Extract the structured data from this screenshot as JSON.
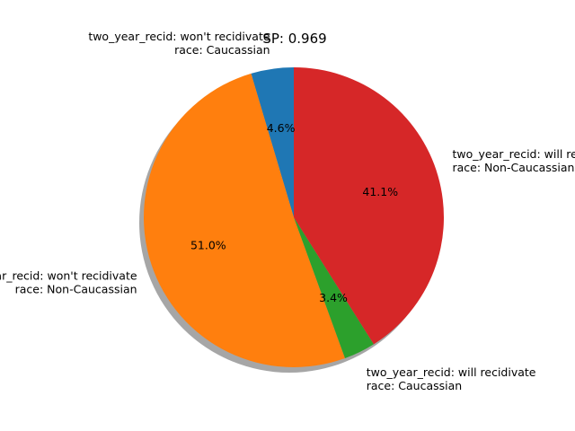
{
  "chart_data": {
    "type": "pie",
    "title": "SP: 0.969",
    "start_angle_deg": 90,
    "direction": "counterclockwise",
    "shadow": true,
    "slices": [
      {
        "label": [
          "two_year_recid: won't recidivate",
          "race: Caucassian"
        ],
        "value": 4.6,
        "pct_label": "4.6%",
        "color": "#1f77b4"
      },
      {
        "label": [
          "two_year_recid: won't recidivate",
          "race: Non-Caucassian"
        ],
        "value": 51.0,
        "pct_label": "51.0%",
        "color": "#ff7f0e"
      },
      {
        "label": [
          "two_year_recid: will recidivate",
          "race: Caucassian"
        ],
        "value": 3.4,
        "pct_label": "3.4%",
        "color": "#2ca02c"
      },
      {
        "label": [
          "two_year_recid: will recidivate",
          "race: Non-Caucassian"
        ],
        "value": 41.1,
        "pct_label": "41.1%",
        "color": "#d62728"
      }
    ]
  }
}
